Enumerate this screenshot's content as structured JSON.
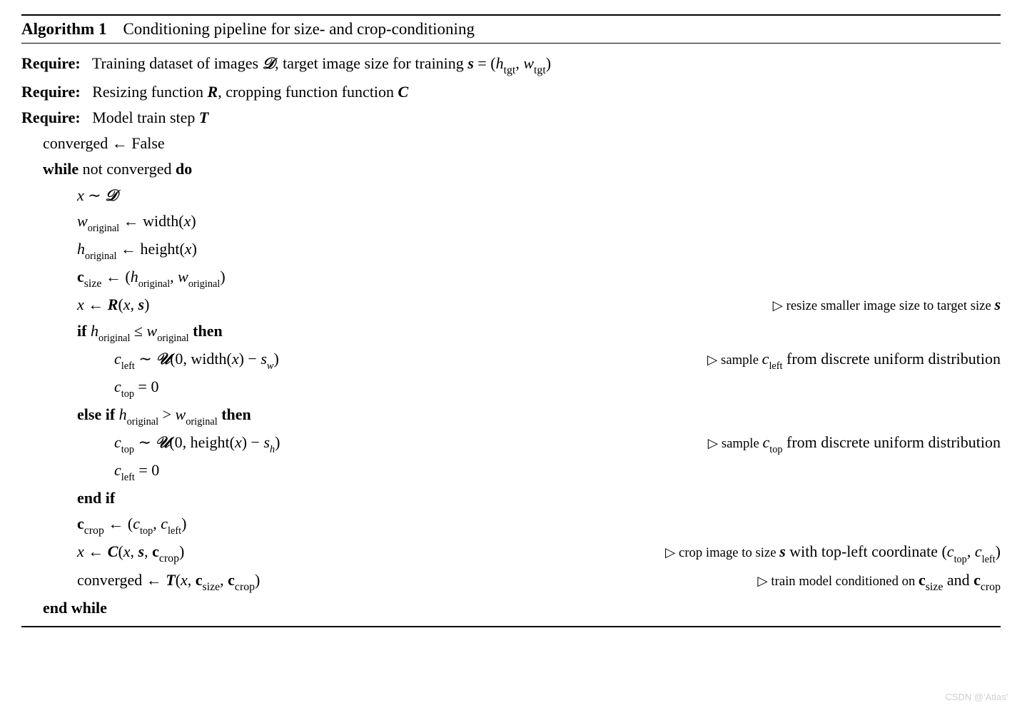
{
  "algorithm": {
    "number": "Algorithm 1",
    "title": "Conditioning pipeline for size- and crop-conditioning",
    "require1_label": "Require:",
    "require1_text_a": "Training dataset of images ",
    "require1_D": "𝒟",
    "require1_text_b": ", target image size for training ",
    "require1_s": "s",
    "require1_eq": " = (",
    "require1_h": "h",
    "require1_tgt1": "tgt",
    "require1_comma": ", ",
    "require1_w": "w",
    "require1_tgt2": "tgt",
    "require1_close": ")",
    "require2_label": "Require:",
    "require2_text_a": "Resizing function ",
    "require2_R": "R",
    "require2_text_b": ", cropping function function ",
    "require2_C": "C",
    "require3_label": "Require:",
    "require3_text": "Model train step ",
    "require3_T": "T",
    "line_conv": "converged ← False",
    "line_while_a": "while",
    "line_while_b": " not converged ",
    "line_while_c": "do",
    "line_xsample_x": "x",
    "line_xsample_sim": " ∼ ",
    "line_xsample_D": "𝒟",
    "line_worig_w": "w",
    "line_worig_sub": "original",
    "line_worig_arrow": " ← width(",
    "line_worig_x": "x",
    "line_worig_close": ")",
    "line_horig_h": "h",
    "line_horig_sub": "original",
    "line_horig_arrow": " ← height(",
    "line_horig_x": "x",
    "line_horig_close": ")",
    "line_csize_c": "c",
    "line_csize_sub": "size",
    "line_csize_arrow": " ← (",
    "line_csize_h": "h",
    "line_csize_hsub": "original",
    "line_csize_comma": ", ",
    "line_csize_w": "w",
    "line_csize_wsub": "original",
    "line_csize_close": ")",
    "line_xR_x": "x",
    "line_xR_arrow": " ← ",
    "line_xR_R": "R",
    "line_xR_open": "(",
    "line_xR_x2": "x",
    "line_xR_comma": ", ",
    "line_xR_s": "s",
    "line_xR_close": ")",
    "comment_resize_a": "▷ resize smaller image size to target size ",
    "comment_resize_s": "s",
    "line_if_a": "if",
    "line_if_b": " ",
    "line_if_h": "h",
    "line_if_hsub": "original",
    "line_if_le": " ≤ ",
    "line_if_w": "w",
    "line_if_wsub": "original",
    "line_if_then": " then",
    "line_cleft_c": "c",
    "line_cleft_sub": "left",
    "line_cleft_sim": " ∼ ",
    "line_cleft_U": "𝒰",
    "line_cleft_open": "(0, width(",
    "line_cleft_x": "x",
    "line_cleft_close": ") − ",
    "line_cleft_s": "s",
    "line_cleft_sw": "w",
    "line_cleft_end": ")",
    "comment_cleft_a": "▷ sample ",
    "comment_cleft_c": "c",
    "comment_cleft_sub": "left",
    "comment_cleft_b": " from discrete uniform distribution",
    "line_ctop0_c": "c",
    "line_ctop0_sub": "top",
    "line_ctop0_eq": " = 0",
    "line_elseif_a": "else if",
    "line_elseif_h": "h",
    "line_elseif_hsub": "original",
    "line_elseif_gt": " > ",
    "line_elseif_w": "w",
    "line_elseif_wsub": "original",
    "line_elseif_then": " then",
    "line_ctop_c": "c",
    "line_ctop_sub": "top",
    "line_ctop_sim": " ∼ ",
    "line_ctop_U": "𝒰",
    "line_ctop_open": "(0, height(",
    "line_ctop_x": "x",
    "line_ctop_close": ") − ",
    "line_ctop_s": "s",
    "line_ctop_sh": "h",
    "line_ctop_end": ")",
    "comment_ctop_a": "▷ sample ",
    "comment_ctop_c": "c",
    "comment_ctop_sub": "top",
    "comment_ctop_b": " from discrete uniform distribution",
    "line_cleft0_c": "c",
    "line_cleft0_sub": "left",
    "line_cleft0_eq": " = 0",
    "line_endif": "end if",
    "line_ccrop_c": "c",
    "line_ccrop_sub": "crop",
    "line_ccrop_arrow": " ← (",
    "line_ccrop_ctop": "c",
    "line_ccrop_topsub": "top",
    "line_ccrop_comma": ", ",
    "line_ccrop_cleft": "c",
    "line_ccrop_leftsub": "left",
    "line_ccrop_close": ")",
    "line_xC_x": "x",
    "line_xC_arrow": " ← ",
    "line_xC_C": "C",
    "line_xC_open": "(",
    "line_xC_x2": "x",
    "line_xC_c1": ", ",
    "line_xC_s": "s",
    "line_xC_c2": ", ",
    "line_xC_cc": "c",
    "line_xC_ccsub": "crop",
    "line_xC_close": ")",
    "comment_crop_a": "▷ crop image to size ",
    "comment_crop_s": "s",
    "comment_crop_b": " with top-left coordinate (",
    "comment_crop_ctop": "c",
    "comment_crop_topsub": "top",
    "comment_crop_comma": ", ",
    "comment_crop_cleft": "c",
    "comment_crop_leftsub": "left",
    "comment_crop_close": ")",
    "line_convT_a": "converged ← ",
    "line_convT_T": "T",
    "line_convT_open": "(",
    "line_convT_x": "x",
    "line_convT_c1": ", ",
    "line_convT_cs": "c",
    "line_convT_cssub": "size",
    "line_convT_c2": ", ",
    "line_convT_cc": "c",
    "line_convT_ccsub": "crop",
    "line_convT_close": ")",
    "comment_train_a": "▷ train model conditioned on ",
    "comment_train_cs": "c",
    "comment_train_cssub": "size",
    "comment_train_and": " and ",
    "comment_train_cc": "c",
    "comment_train_ccsub": "crop",
    "line_endwhile": "end while"
  },
  "watermark": "CSDN @'Atlas'"
}
